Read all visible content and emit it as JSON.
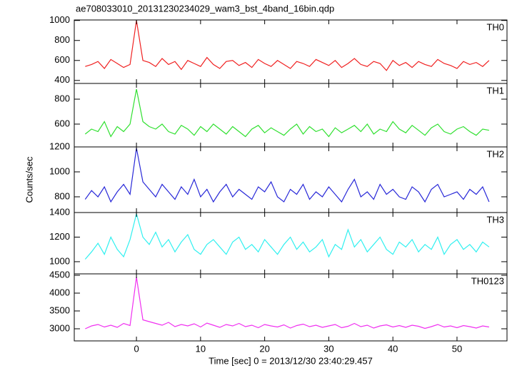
{
  "title": "ae708033010_20131230234029_wam3_bst_4band_16bin.qdp",
  "x_label": "Time [sec] 0 = 2013/12/30 23:40:29.457",
  "y_label": "Counts/sec",
  "xlim": [
    -9.7,
    57.8
  ],
  "xticks": [
    0,
    10,
    20,
    30,
    40,
    50
  ],
  "x": [
    -8,
    -7,
    -6,
    -5,
    -4,
    -3,
    -2,
    -1,
    0,
    1,
    2,
    3,
    4,
    5,
    6,
    7,
    8,
    9,
    10,
    11,
    12,
    13,
    14,
    15,
    16,
    17,
    18,
    19,
    20,
    21,
    22,
    23,
    24,
    25,
    26,
    27,
    28,
    29,
    30,
    31,
    32,
    33,
    34,
    35,
    36,
    37,
    38,
    39,
    40,
    41,
    42,
    43,
    44,
    45,
    46,
    47,
    48,
    49,
    50,
    51,
    52,
    53,
    54,
    55
  ],
  "chart_data": [
    {
      "type": "line",
      "name": "TH0",
      "color": "#f02020",
      "ylim": [
        370,
        1005
      ],
      "yticks": [
        400,
        600,
        800,
        1000
      ],
      "values": [
        540,
        560,
        590,
        520,
        610,
        570,
        530,
        560,
        1000,
        600,
        580,
        540,
        620,
        560,
        590,
        510,
        600,
        570,
        540,
        630,
        560,
        520,
        590,
        600,
        550,
        580,
        530,
        610,
        570,
        540,
        600,
        560,
        520,
        590,
        570,
        540,
        610,
        580,
        550,
        600,
        530,
        570,
        620,
        560,
        540,
        590,
        570,
        500,
        600,
        550,
        580,
        530,
        590,
        560,
        540,
        610,
        570,
        550,
        520,
        590,
        560,
        580,
        540,
        600
      ]
    },
    {
      "type": "line",
      "name": "TH1",
      "color": "#30e030",
      "ylim": [
        417,
        926
      ],
      "yticks": [
        600,
        800
      ],
      "values": [
        520,
        560,
        540,
        620,
        500,
        580,
        540,
        600,
        880,
        620,
        580,
        560,
        600,
        540,
        520,
        590,
        560,
        510,
        580,
        540,
        600,
        560,
        520,
        580,
        540,
        500,
        560,
        590,
        530,
        570,
        540,
        510,
        560,
        600,
        520,
        580,
        540,
        560,
        500,
        570,
        530,
        560,
        590,
        540,
        600,
        520,
        560,
        540,
        620,
        560,
        530,
        590,
        550,
        510,
        570,
        600,
        540,
        520,
        560,
        580,
        540,
        510,
        560,
        550
      ]
    },
    {
      "type": "line",
      "name": "TH2",
      "color": "#2828d8",
      "ylim": [
        674,
        1200
      ],
      "yticks": [
        800,
        1000,
        1200
      ],
      "values": [
        780,
        850,
        800,
        880,
        760,
        840,
        900,
        820,
        1190,
        920,
        860,
        800,
        900,
        840,
        780,
        880,
        820,
        940,
        800,
        860,
        760,
        840,
        900,
        800,
        860,
        820,
        780,
        880,
        840,
        920,
        800,
        760,
        860,
        820,
        900,
        780,
        840,
        800,
        880,
        820,
        760,
        860,
        940,
        800,
        840,
        780,
        900,
        820,
        860,
        800,
        780,
        880,
        840,
        760,
        860,
        900,
        800,
        820,
        840,
        780,
        860,
        820,
        880,
        760
      ]
    },
    {
      "type": "line",
      "name": "TH3",
      "color": "#30f0f0",
      "ylim": [
        901,
        1400
      ],
      "yticks": [
        1000,
        1200,
        1400
      ],
      "values": [
        1020,
        1080,
        1150,
        1060,
        1200,
        1100,
        1040,
        1180,
        1390,
        1200,
        1140,
        1240,
        1120,
        1180,
        1080,
        1160,
        1220,
        1100,
        1060,
        1140,
        1180,
        1120,
        1060,
        1160,
        1200,
        1100,
        1140,
        1080,
        1180,
        1120,
        1060,
        1140,
        1200,
        1100,
        1160,
        1080,
        1120,
        1180,
        1040,
        1140,
        1100,
        1260,
        1120,
        1180,
        1080,
        1140,
        1200,
        1100,
        1060,
        1160,
        1120,
        1180,
        1080,
        1140,
        1100,
        1200,
        1060,
        1140,
        1180,
        1100,
        1140,
        1080,
        1160,
        1120
      ]
    },
    {
      "type": "line",
      "name": "TH0123",
      "color": "#f030f0",
      "ylim": [
        2660,
        4540
      ],
      "yticks": [
        3000,
        3500,
        4000,
        4500
      ],
      "values": [
        3000,
        3080,
        3120,
        3050,
        3100,
        3040,
        3150,
        3090,
        4450,
        3250,
        3200,
        3150,
        3100,
        3180,
        3060,
        3120,
        3080,
        3140,
        3050,
        3160,
        3100,
        3040,
        3120,
        3080,
        3150,
        3060,
        3100,
        3030,
        3120,
        3080,
        3050,
        3110,
        3020,
        3090,
        3130,
        3060,
        3100,
        3040,
        3080,
        3120,
        3030,
        3070,
        3150,
        3060,
        3100,
        3020,
        3080,
        3110,
        3050,
        3090,
        3040,
        3100,
        3070,
        3010,
        3060,
        3120,
        3050,
        3080,
        3030,
        3090,
        3060,
        3020,
        3080,
        3050
      ]
    }
  ]
}
